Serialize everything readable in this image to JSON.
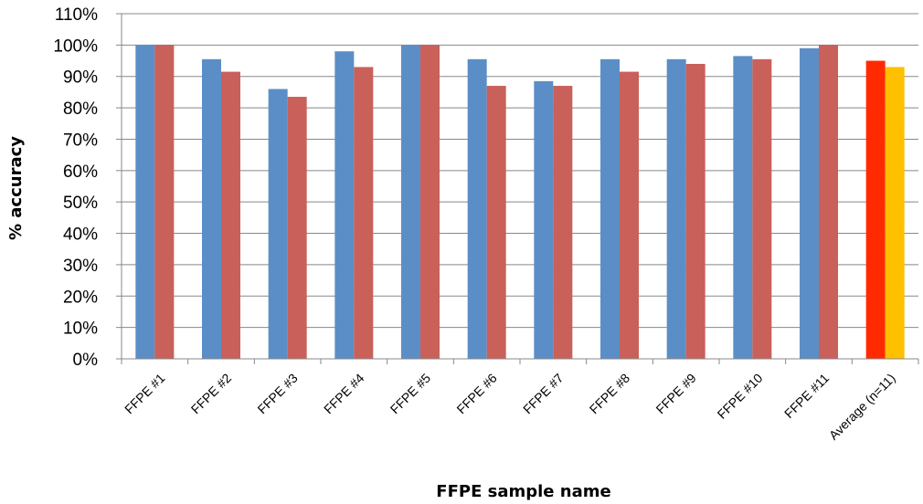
{
  "chart_data": {
    "type": "bar",
    "title": "",
    "xlabel": "FFPE sample name",
    "ylabel": "% accuracy",
    "ylim": [
      0,
      110
    ],
    "ytick_step": 10,
    "ytick_suffix": "%",
    "grid": true,
    "legend": "none",
    "categories": [
      "FFPE #1",
      "FFPE #2",
      "FFPE #3",
      "FFPE #4",
      "FFPE #5",
      "FFPE #6",
      "FFPE #7",
      "FFPE #8",
      "FFPE #9",
      "FFPE #10",
      "FFPE #11",
      "Average (n=11)"
    ],
    "series": [
      {
        "values": [
          100,
          95.5,
          86,
          98,
          100,
          95.5,
          88.5,
          95.5,
          95.5,
          96.5,
          99,
          95
        ],
        "color": "#5b8ec6",
        "highlight_color": "#ff2a00"
      },
      {
        "values": [
          100,
          91.5,
          83.5,
          93,
          100,
          87,
          87,
          91.5,
          94,
          95.5,
          100,
          93
        ],
        "color": "#c9605a",
        "highlight_color": "#ffc000"
      }
    ],
    "highlight_category": "Average (n=11)"
  }
}
